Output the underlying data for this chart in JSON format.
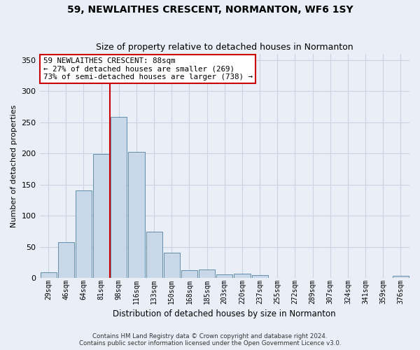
{
  "title1": "59, NEWLAITHES CRESCENT, NORMANTON, WF6 1SY",
  "title2": "Size of property relative to detached houses in Normanton",
  "xlabel": "Distribution of detached houses by size in Normanton",
  "ylabel": "Number of detached properties",
  "categories": [
    "29sqm",
    "46sqm",
    "64sqm",
    "81sqm",
    "98sqm",
    "116sqm",
    "133sqm",
    "150sqm",
    "168sqm",
    "185sqm",
    "203sqm",
    "220sqm",
    "237sqm",
    "255sqm",
    "272sqm",
    "289sqm",
    "307sqm",
    "324sqm",
    "341sqm",
    "359sqm",
    "376sqm"
  ],
  "values": [
    9,
    57,
    141,
    199,
    259,
    203,
    74,
    40,
    12,
    13,
    6,
    7,
    4,
    0,
    0,
    0,
    0,
    0,
    0,
    0,
    3
  ],
  "bar_color": "#c8d8e8",
  "bar_edge_color": "#5080a0",
  "grid_color": "#c8d4e4",
  "background_color": "#eaeff7",
  "vline_color": "#cc0000",
  "annotation_text": "59 NEWLAITHES CRESCENT: 88sqm\n← 27% of detached houses are smaller (269)\n73% of semi-detached houses are larger (738) →",
  "annotation_box_color": "#ffffff",
  "annotation_box_edge": "#cc0000",
  "ylim": [
    0,
    360
  ],
  "yticks": [
    0,
    50,
    100,
    150,
    200,
    250,
    300,
    350
  ],
  "footer1": "Contains HM Land Registry data © Crown copyright and database right 2024.",
  "footer2": "Contains public sector information licensed under the Open Government Licence v3.0."
}
